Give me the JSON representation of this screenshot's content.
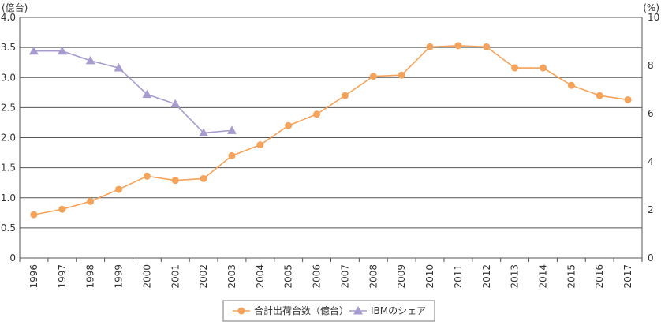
{
  "chart_data": {
    "type": "line",
    "title": "",
    "x": [
      "1996",
      "1997",
      "1998",
      "1999",
      "2000",
      "2001",
      "2002",
      "2003",
      "2004",
      "2005",
      "2006",
      "2007",
      "2008",
      "2009",
      "2010",
      "2011",
      "2012",
      "2013",
      "2014",
      "2015",
      "2016",
      "2017"
    ],
    "y_left": {
      "unit_label": "(億台)",
      "ylim": [
        0,
        4.0
      ],
      "ticks": [
        "0",
        "0.5",
        "1.0",
        "1.5",
        "2.0",
        "2.5",
        "3.0",
        "3.5",
        "4.0"
      ]
    },
    "y_right": {
      "unit_label": "(%)",
      "ylim": [
        0,
        10
      ],
      "ticks": [
        "0",
        "2",
        "4",
        "6",
        "8",
        "10"
      ]
    },
    "grid": true,
    "legend_position": "bottom-center",
    "series": [
      {
        "name": "合計出荷台数（億台）",
        "axis": "left",
        "marker": "circle",
        "color": "#f5a35a",
        "values": [
          0.72,
          0.81,
          0.94,
          1.14,
          1.36,
          1.29,
          1.32,
          1.7,
          1.88,
          2.2,
          2.39,
          2.7,
          3.02,
          3.04,
          3.51,
          3.53,
          3.51,
          3.16,
          3.16,
          2.87,
          2.7,
          2.63
        ]
      },
      {
        "name": "IBMのシェア",
        "axis": "right",
        "marker": "triangle",
        "color": "#a89ccf",
        "values": [
          8.6,
          8.6,
          8.2,
          7.9,
          6.8,
          6.4,
          5.2,
          5.3,
          null,
          null,
          null,
          null,
          null,
          null,
          null,
          null,
          null,
          null,
          null,
          null,
          null,
          null
        ]
      }
    ]
  }
}
